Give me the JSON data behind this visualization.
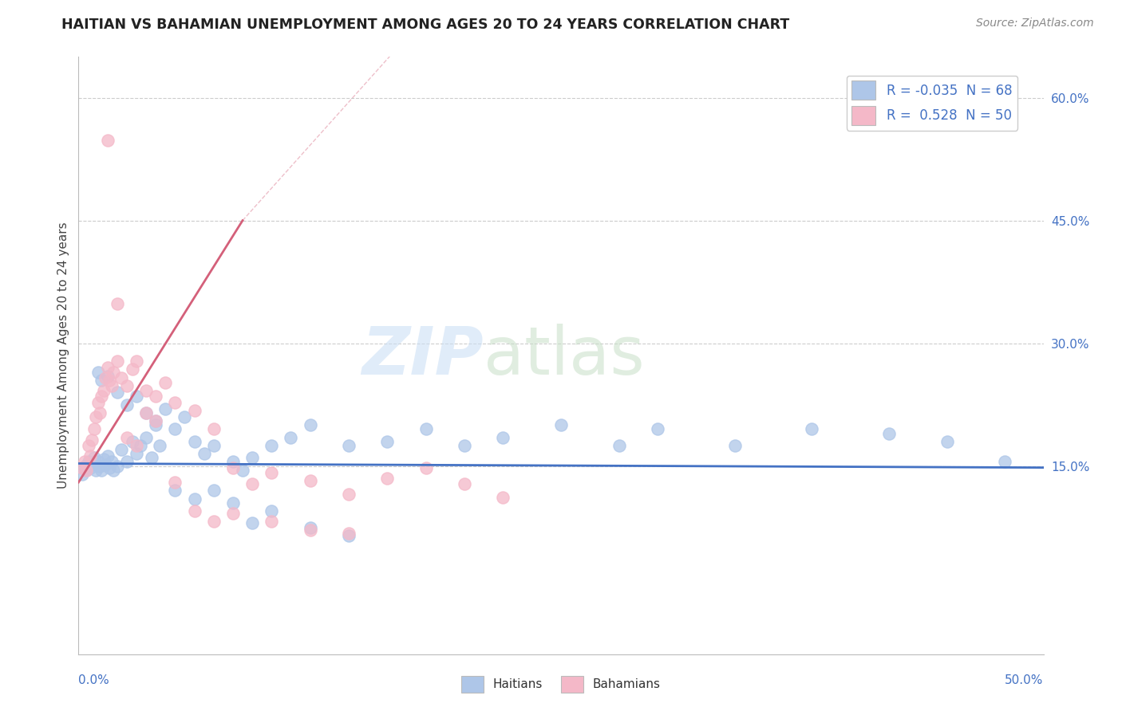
{
  "title": "HAITIAN VS BAHAMIAN UNEMPLOYMENT AMONG AGES 20 TO 24 YEARS CORRELATION CHART",
  "source": "Source: ZipAtlas.com",
  "ylabel": "Unemployment Among Ages 20 to 24 years",
  "legend_haitians": "Haitians",
  "legend_bahamians": "Bahamians",
  "r_haitians": "-0.035",
  "n_haitians": "68",
  "r_bahamians": "0.528",
  "n_bahamians": "50",
  "xlim": [
    0.0,
    0.5
  ],
  "ylim": [
    -0.08,
    0.65
  ],
  "yticks": [
    0.15,
    0.3,
    0.45,
    0.6
  ],
  "ytick_labels": [
    "15.0%",
    "30.0%",
    "45.0%",
    "60.0%"
  ],
  "haitian_color": "#aec6e8",
  "bahamian_color": "#f4b8c8",
  "haitian_line_color": "#4472c4",
  "bahamian_line_color": "#d4607a",
  "bahamian_trend_line_style": "solid",
  "haitian_trend_line_style": "solid",
  "haitian_x": [
    0.002,
    0.003,
    0.004,
    0.005,
    0.006,
    0.007,
    0.008,
    0.009,
    0.01,
    0.011,
    0.012,
    0.013,
    0.014,
    0.015,
    0.016,
    0.017,
    0.018,
    0.02,
    0.022,
    0.025,
    0.028,
    0.03,
    0.032,
    0.035,
    0.038,
    0.04,
    0.042,
    0.045,
    0.05,
    0.055,
    0.06,
    0.065,
    0.07,
    0.08,
    0.085,
    0.09,
    0.1,
    0.11,
    0.12,
    0.14,
    0.16,
    0.18,
    0.2,
    0.22,
    0.25,
    0.28,
    0.3,
    0.34,
    0.38,
    0.42,
    0.45,
    0.48,
    0.01,
    0.012,
    0.015,
    0.02,
    0.025,
    0.03,
    0.035,
    0.04,
    0.05,
    0.06,
    0.07,
    0.08,
    0.09,
    0.1,
    0.12,
    0.14
  ],
  "haitian_y": [
    0.14,
    0.15,
    0.145,
    0.155,
    0.148,
    0.152,
    0.16,
    0.145,
    0.155,
    0.15,
    0.145,
    0.158,
    0.152,
    0.162,
    0.148,
    0.155,
    0.145,
    0.15,
    0.17,
    0.155,
    0.18,
    0.165,
    0.175,
    0.185,
    0.16,
    0.2,
    0.175,
    0.22,
    0.195,
    0.21,
    0.18,
    0.165,
    0.175,
    0.155,
    0.145,
    0.16,
    0.175,
    0.185,
    0.2,
    0.175,
    0.18,
    0.195,
    0.175,
    0.185,
    0.2,
    0.175,
    0.195,
    0.175,
    0.195,
    0.19,
    0.18,
    0.155,
    0.265,
    0.255,
    0.26,
    0.24,
    0.225,
    0.235,
    0.215,
    0.205,
    0.12,
    0.11,
    0.12,
    0.105,
    0.08,
    0.095,
    0.075,
    0.065
  ],
  "bahamian_x": [
    0.002,
    0.003,
    0.004,
    0.005,
    0.006,
    0.007,
    0.008,
    0.009,
    0.01,
    0.011,
    0.012,
    0.013,
    0.014,
    0.015,
    0.016,
    0.017,
    0.018,
    0.02,
    0.022,
    0.025,
    0.028,
    0.03,
    0.035,
    0.04,
    0.045,
    0.05,
    0.06,
    0.07,
    0.08,
    0.09,
    0.1,
    0.12,
    0.14,
    0.16,
    0.18,
    0.2,
    0.22,
    0.015,
    0.02,
    0.025,
    0.03,
    0.035,
    0.04,
    0.05,
    0.06,
    0.07,
    0.08,
    0.1,
    0.12,
    0.14
  ],
  "bahamian_y": [
    0.148,
    0.155,
    0.145,
    0.175,
    0.162,
    0.182,
    0.195,
    0.21,
    0.228,
    0.215,
    0.235,
    0.242,
    0.258,
    0.27,
    0.255,
    0.248,
    0.265,
    0.278,
    0.258,
    0.248,
    0.268,
    0.278,
    0.242,
    0.235,
    0.252,
    0.228,
    0.218,
    0.195,
    0.148,
    0.128,
    0.142,
    0.132,
    0.115,
    0.135,
    0.148,
    0.128,
    0.112,
    0.548,
    0.348,
    0.185,
    0.175,
    0.215,
    0.205,
    0.13,
    0.095,
    0.082,
    0.092,
    0.082,
    0.072,
    0.068
  ],
  "haitian_trend_x": [
    0.0,
    0.5
  ],
  "haitian_trend_y": [
    0.153,
    0.148
  ],
  "bahamian_trend_x": [
    0.0,
    0.085
  ],
  "bahamian_trend_y": [
    0.13,
    0.45
  ]
}
